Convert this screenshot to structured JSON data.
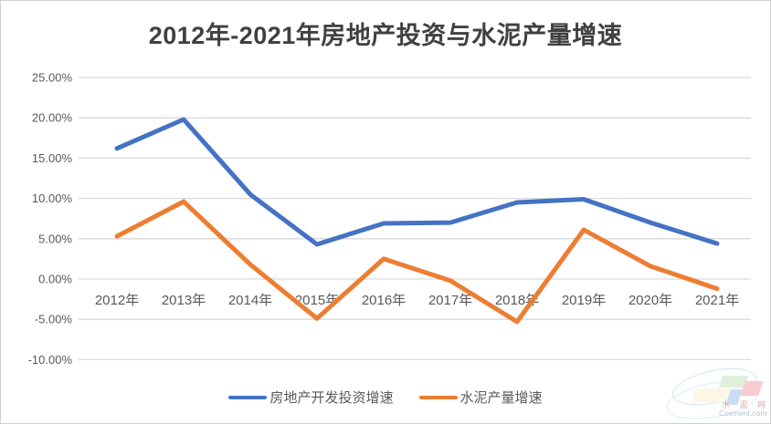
{
  "title": "2012年-2021年房地产投资与水泥产量增速",
  "colors": {
    "series1": "#4472C4",
    "series2": "#ED7D31",
    "gridline": "#D9D9D9",
    "axis_text": "#595959",
    "title_text": "#404040",
    "background": "#FFFFFF"
  },
  "chart_data": {
    "type": "line",
    "title": "2012年-2021年房地产投资与水泥产量增速",
    "categories": [
      "2012年",
      "2013年",
      "2014年",
      "2015年",
      "2016年",
      "2017年",
      "2018年",
      "2019年",
      "2020年",
      "2021年"
    ],
    "series": [
      {
        "name": "房地产开发投资增速",
        "color": "#4472C4",
        "values": [
          16.2,
          19.8,
          10.5,
          4.3,
          6.9,
          7.0,
          9.5,
          9.9,
          7.0,
          4.4
        ]
      },
      {
        "name": "水泥产量增速",
        "color": "#ED7D31",
        "values": [
          5.3,
          9.6,
          1.8,
          -4.9,
          2.5,
          -0.2,
          -5.3,
          6.1,
          1.6,
          -1.2
        ]
      }
    ],
    "y_ticks": [
      25,
      20,
      15,
      10,
      5,
      0,
      -5,
      -10
    ],
    "y_tick_labels": [
      "25.00%",
      "20.00%",
      "15.00%",
      "10.00%",
      "5.00%",
      "0.00%",
      "-5.00%",
      "-10.00%"
    ],
    "ylim": [
      -10,
      25
    ],
    "unit": "%",
    "grid": true,
    "legend_position": "bottom"
  },
  "legend": {
    "items": [
      {
        "label": "房地产开发投资增速"
      },
      {
        "label": "水泥产量增速"
      }
    ]
  },
  "watermark": {
    "line1": "水 泥 网",
    "line2": "Ccement.com"
  }
}
